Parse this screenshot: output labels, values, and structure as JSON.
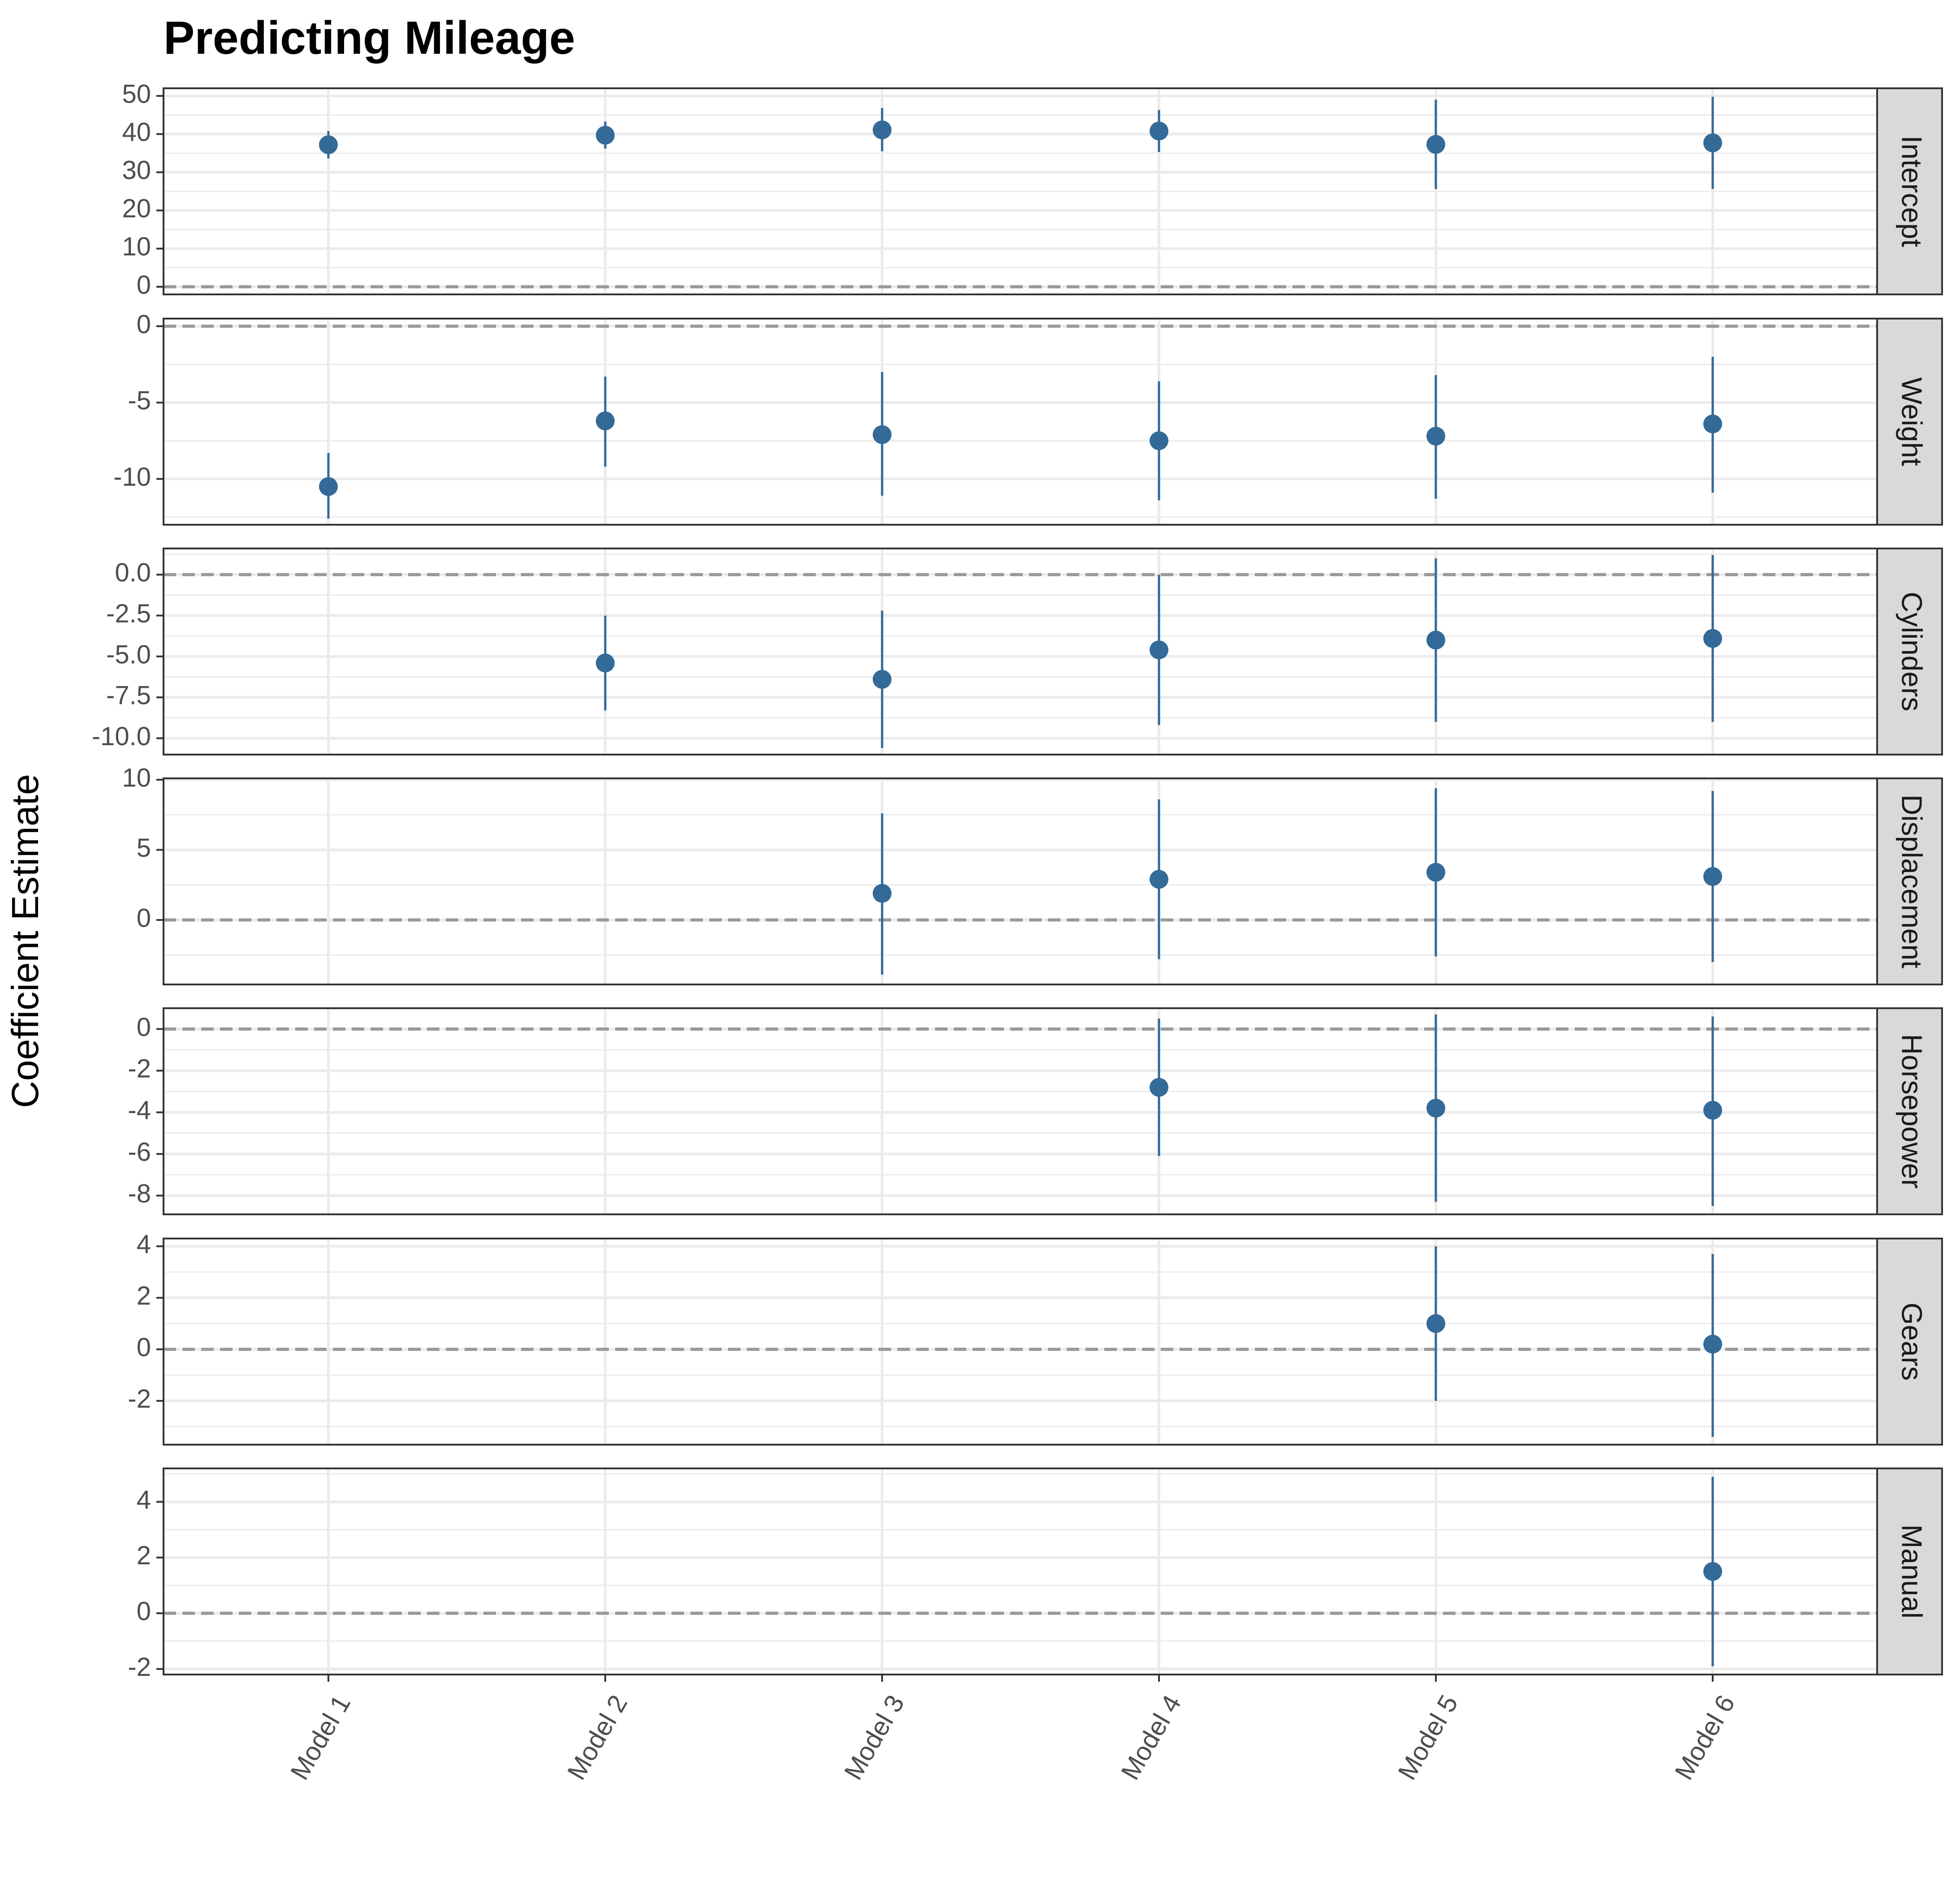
{
  "title": "Predicting Mileage",
  "ylabel": "Coefficient Estimate",
  "colors": {
    "point": "#336a98",
    "zero_line": "#999999",
    "grid": "#ebebeb",
    "strip": "#d9d9d9"
  },
  "chart_data": {
    "type": "scatter",
    "subtype": "coefficient-plot",
    "title": "Predicting Mileage",
    "xlabel": "",
    "ylabel": "Coefficient Estimate",
    "categories": [
      "Model 1",
      "Model 2",
      "Model 3",
      "Model 4",
      "Model 5",
      "Model 6"
    ],
    "reference_line": 0,
    "grid": true,
    "facets": [
      {
        "name": "Intercept",
        "ylim": [
          -2,
          52
        ],
        "ticks": [
          0,
          10,
          20,
          30,
          40,
          50
        ],
        "tick_labels": [
          "0",
          "10",
          "20",
          "30",
          "40",
          "50"
        ],
        "estimates": [
          37.2,
          39.7,
          41.1,
          40.8,
          37.3,
          37.7
        ],
        "lower": [
          33.6,
          36.2,
          35.5,
          35.3,
          25.6,
          25.6
        ],
        "upper": [
          40.8,
          43.3,
          46.8,
          46.3,
          49.0,
          49.8
        ]
      },
      {
        "name": "Weight",
        "ylim": [
          -13,
          0.5
        ],
        "ticks": [
          0,
          -5,
          -10
        ],
        "tick_labels": [
          "0",
          "-5",
          "-10"
        ],
        "estimates": [
          -10.5,
          -6.2,
          -7.1,
          -7.5,
          -7.2,
          -6.4
        ],
        "lower": [
          -12.6,
          -9.2,
          -11.1,
          -11.4,
          -11.3,
          -10.9
        ],
        "upper": [
          -8.3,
          -3.3,
          -3.0,
          -3.6,
          -3.2,
          -2.0
        ]
      },
      {
        "name": "Cylinders",
        "ylim": [
          -11.0,
          1.6
        ],
        "ticks": [
          0.0,
          -2.5,
          -5.0,
          -7.5,
          -10.0
        ],
        "tick_labels": [
          "0.0",
          "-2.5",
          "-5.0",
          "-7.5",
          "-10.0"
        ],
        "estimates": [
          null,
          -5.4,
          -6.4,
          -4.6,
          -4.0,
          -3.9
        ],
        "lower": [
          null,
          -8.3,
          -10.6,
          -9.2,
          -9.0,
          -9.0
        ],
        "upper": [
          null,
          -2.5,
          -2.2,
          0.0,
          1.0,
          1.2
        ]
      },
      {
        "name": "Displacement",
        "ylim": [
          -4.6,
          10.1
        ],
        "ticks": [
          10,
          5,
          0
        ],
        "tick_labels": [
          "10",
          "5",
          "0"
        ],
        "estimates": [
          null,
          null,
          1.9,
          2.9,
          3.4,
          3.1
        ],
        "lower": [
          null,
          null,
          -3.9,
          -2.8,
          -2.6,
          -3.0
        ],
        "upper": [
          null,
          null,
          7.6,
          8.6,
          9.4,
          9.2
        ]
      },
      {
        "name": "Horsepower",
        "ylim": [
          -8.9,
          1.0
        ],
        "ticks": [
          0,
          -2,
          -4,
          -6,
          -8
        ],
        "tick_labels": [
          "0",
          "-2",
          "-4",
          "-6",
          "-8"
        ],
        "estimates": [
          null,
          null,
          null,
          -2.8,
          -3.8,
          -3.9
        ],
        "lower": [
          null,
          null,
          null,
          -6.1,
          -8.3,
          -8.5
        ],
        "upper": [
          null,
          null,
          null,
          0.5,
          0.7,
          0.6
        ]
      },
      {
        "name": "Gears",
        "ylim": [
          -3.7,
          4.3
        ],
        "ticks": [
          4,
          2,
          0,
          -2
        ],
        "tick_labels": [
          "4",
          "2",
          "0",
          "-2"
        ],
        "estimates": [
          null,
          null,
          null,
          null,
          1.0,
          0.2
        ],
        "lower": [
          null,
          null,
          null,
          null,
          -2.0,
          -3.4
        ],
        "upper": [
          null,
          null,
          null,
          null,
          4.0,
          3.7
        ]
      },
      {
        "name": "Manual",
        "ylim": [
          -2.2,
          5.2
        ],
        "ticks": [
          4,
          2,
          0,
          -2
        ],
        "tick_labels": [
          "4",
          "2",
          "0",
          "-2"
        ],
        "estimates": [
          null,
          null,
          null,
          null,
          null,
          1.5
        ],
        "lower": [
          null,
          null,
          null,
          null,
          null,
          -1.9
        ],
        "upper": [
          null,
          null,
          null,
          null,
          null,
          4.9
        ]
      }
    ]
  }
}
